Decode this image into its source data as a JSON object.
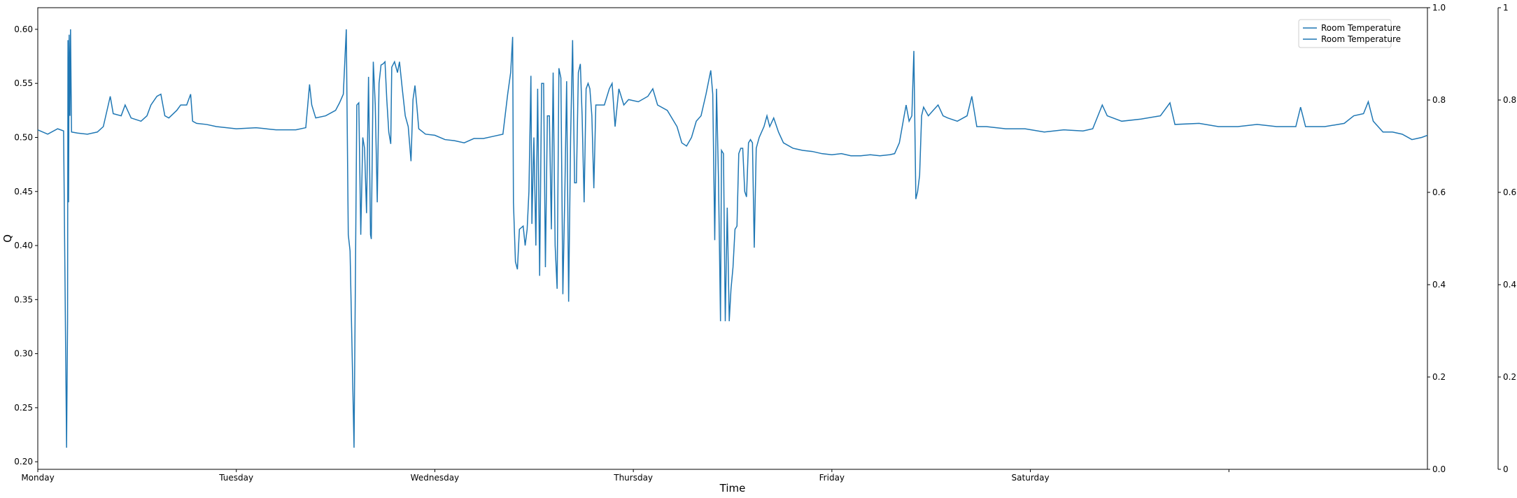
{
  "chart_data": {
    "type": "line",
    "x_label": "Time",
    "y_label": "Q",
    "xlim": [
      0,
      7
    ],
    "xticks": [
      {
        "value": 0,
        "label": "Monday"
      },
      {
        "value": 1,
        "label": "Tuesday"
      },
      {
        "value": 2,
        "label": "Wednesday"
      },
      {
        "value": 3,
        "label": "Thursday"
      },
      {
        "value": 4,
        "label": "Friday"
      },
      {
        "value": 5,
        "label": "Saturday"
      },
      {
        "value": 6,
        "label": null
      }
    ],
    "ylim": [
      0.193,
      0.62
    ],
    "yticks": [
      {
        "value": 0.2,
        "label": "0.20"
      },
      0.25,
      {
        "value": 0.3,
        "label": "0.30"
      },
      0.35,
      {
        "value": 0.4,
        "label": "0.40"
      },
      0.45,
      {
        "value": 0.5,
        "label": "0.50"
      },
      0.55,
      {
        "value": 0.6,
        "label": "0.60"
      }
    ],
    "y2lim": [
      0,
      1
    ],
    "y2ticks": [
      {
        "value": 0,
        "label": "0.0"
      },
      0.2,
      0.4,
      0.6,
      0.8,
      {
        "value": 1,
        "label": "1.0"
      }
    ],
    "y3lim": [
      0,
      1
    ],
    "y3ticks": [
      0,
      0.2,
      0.4,
      0.6,
      0.8,
      1
    ],
    "legend": "upper right",
    "grid": false,
    "series": [
      {
        "name": "Room Temperature",
        "color": "#1f77b4",
        "x": [
          0,
          0.05,
          0.1,
          0.13,
          0.145,
          0.15,
          0.152,
          0.155,
          0.158,
          0.162,
          0.165,
          0.17,
          0.2,
          0.25,
          0.3,
          0.33,
          0.365,
          0.38,
          0.42,
          0.44,
          0.47,
          0.52,
          0.55,
          0.57,
          0.6,
          0.62,
          0.64,
          0.66,
          0.7,
          0.72,
          0.75,
          0.77,
          0.78,
          0.8,
          0.85,
          0.9,
          1.0,
          1.1,
          1.2,
          1.3,
          1.35,
          1.369,
          1.38,
          1.4,
          1.45,
          1.5,
          1.52,
          1.539,
          1.554,
          1.564,
          1.573,
          1.593,
          1.607,
          1.617,
          1.627,
          1.637,
          1.646,
          1.656,
          1.666,
          1.676,
          1.68,
          1.69,
          1.7,
          1.71,
          1.719,
          1.729,
          1.739,
          1.749,
          1.758,
          1.768,
          1.778,
          1.783,
          1.797,
          1.812,
          1.822,
          1.836,
          1.851,
          1.866,
          1.88,
          1.89,
          1.9,
          1.909,
          1.919,
          1.953,
          2.0,
          2.051,
          2.099,
          2.148,
          2.197,
          2.245,
          2.294,
          2.343,
          2.367,
          2.382,
          2.392,
          2.396,
          2.406,
          2.416,
          2.426,
          2.445,
          2.455,
          2.465,
          2.474,
          2.484,
          2.489,
          2.499,
          2.509,
          2.518,
          2.528,
          2.538,
          2.548,
          2.557,
          2.567,
          2.577,
          2.587,
          2.596,
          2.606,
          2.616,
          2.625,
          2.635,
          2.645,
          2.655,
          2.664,
          2.674,
          2.684,
          2.694,
          2.704,
          2.713,
          2.723,
          2.733,
          2.742,
          2.752,
          2.762,
          2.772,
          2.781,
          2.791,
          2.801,
          2.811,
          2.83,
          2.854,
          2.879,
          2.893,
          2.908,
          2.927,
          2.952,
          2.976,
          3.025,
          3.073,
          3.098,
          3.122,
          3.171,
          3.22,
          3.244,
          3.268,
          3.293,
          3.317,
          3.341,
          3.366,
          3.39,
          3.4,
          3.41,
          3.419,
          3.429,
          3.439,
          3.444,
          3.454,
          3.463,
          3.473,
          3.483,
          3.492,
          3.502,
          3.512,
          3.522,
          3.531,
          3.541,
          3.551,
          3.561,
          3.57,
          3.58,
          3.59,
          3.6,
          3.609,
          3.619,
          3.634,
          3.658,
          3.673,
          3.687,
          3.707,
          3.731,
          3.756,
          3.804,
          3.853,
          3.902,
          3.95,
          4.0,
          4.048,
          4.096,
          4.145,
          4.194,
          4.242,
          4.291,
          4.316,
          4.34,
          4.364,
          4.374,
          4.389,
          4.403,
          4.413,
          4.423,
          4.432,
          4.442,
          4.452,
          4.462,
          4.486,
          4.51,
          4.535,
          4.56,
          4.584,
          4.632,
          4.681,
          4.705,
          4.73,
          4.778,
          4.876,
          4.973,
          5.07,
          5.168,
          5.265,
          5.314,
          5.362,
          5.387,
          5.46,
          5.557,
          5.655,
          5.703,
          5.728,
          5.85,
          5.947,
          6.045,
          6.142,
          6.24,
          6.337,
          6.361,
          6.386,
          6.483,
          6.581,
          6.629,
          6.678,
          6.702,
          6.727,
          6.776,
          6.824,
          6.873,
          6.922,
          6.971,
          7.0
        ],
        "values": [
          0.507,
          0.503,
          0.508,
          0.506,
          0.213,
          0.33,
          0.59,
          0.44,
          0.595,
          0.52,
          0.6,
          0.505,
          0.504,
          0.503,
          0.505,
          0.51,
          0.538,
          0.522,
          0.52,
          0.53,
          0.518,
          0.515,
          0.52,
          0.53,
          0.538,
          0.54,
          0.52,
          0.518,
          0.525,
          0.53,
          0.53,
          0.54,
          0.515,
          0.513,
          0.512,
          0.51,
          0.508,
          0.509,
          0.507,
          0.507,
          0.509,
          0.549,
          0.53,
          0.518,
          0.52,
          0.525,
          0.532,
          0.54,
          0.6,
          0.41,
          0.395,
          0.213,
          0.53,
          0.532,
          0.41,
          0.5,
          0.49,
          0.43,
          0.556,
          0.41,
          0.406,
          0.57,
          0.53,
          0.44,
          0.55,
          0.567,
          0.568,
          0.57,
          0.535,
          0.505,
          0.494,
          0.565,
          0.57,
          0.56,
          0.57,
          0.545,
          0.52,
          0.51,
          0.478,
          0.535,
          0.548,
          0.53,
          0.508,
          0.503,
          0.502,
          0.498,
          0.497,
          0.495,
          0.499,
          0.499,
          0.501,
          0.503,
          0.54,
          0.56,
          0.593,
          0.44,
          0.385,
          0.378,
          0.415,
          0.418,
          0.4,
          0.415,
          0.45,
          0.557,
          0.42,
          0.5,
          0.4,
          0.545,
          0.372,
          0.55,
          0.55,
          0.38,
          0.52,
          0.52,
          0.415,
          0.56,
          0.4,
          0.36,
          0.564,
          0.555,
          0.355,
          0.45,
          0.552,
          0.348,
          0.5,
          0.59,
          0.458,
          0.458,
          0.56,
          0.568,
          0.52,
          0.44,
          0.545,
          0.55,
          0.545,
          0.52,
          0.453,
          0.53,
          0.53,
          0.53,
          0.545,
          0.55,
          0.51,
          0.545,
          0.53,
          0.535,
          0.533,
          0.538,
          0.545,
          0.53,
          0.525,
          0.51,
          0.495,
          0.492,
          0.5,
          0.515,
          0.52,
          0.54,
          0.562,
          0.54,
          0.405,
          0.545,
          0.46,
          0.33,
          0.488,
          0.485,
          0.33,
          0.435,
          0.33,
          0.36,
          0.38,
          0.415,
          0.418,
          0.485,
          0.49,
          0.49,
          0.45,
          0.445,
          0.495,
          0.498,
          0.495,
          0.398,
          0.49,
          0.5,
          0.51,
          0.52,
          0.51,
          0.518,
          0.505,
          0.495,
          0.49,
          0.488,
          0.487,
          0.485,
          0.484,
          0.485,
          0.483,
          0.483,
          0.484,
          0.483,
          0.484,
          0.485,
          0.495,
          0.52,
          0.53,
          0.515,
          0.52,
          0.58,
          0.443,
          0.45,
          0.465,
          0.52,
          0.528,
          0.52,
          0.525,
          0.53,
          0.52,
          0.518,
          0.515,
          0.52,
          0.538,
          0.51,
          0.51,
          0.508,
          0.508,
          0.505,
          0.507,
          0.506,
          0.508,
          0.53,
          0.52,
          0.515,
          0.517,
          0.52,
          0.532,
          0.512,
          0.513,
          0.51,
          0.51,
          0.512,
          0.51,
          0.51,
          0.528,
          0.51,
          0.51,
          0.513,
          0.52,
          0.522,
          0.533,
          0.515,
          0.505,
          0.505,
          0.503,
          0.498,
          0.5,
          0.502
        ]
      },
      {
        "name": "Room Temperature",
        "color": "#1f77b4",
        "axis": "y2",
        "x": [],
        "values": []
      }
    ]
  }
}
